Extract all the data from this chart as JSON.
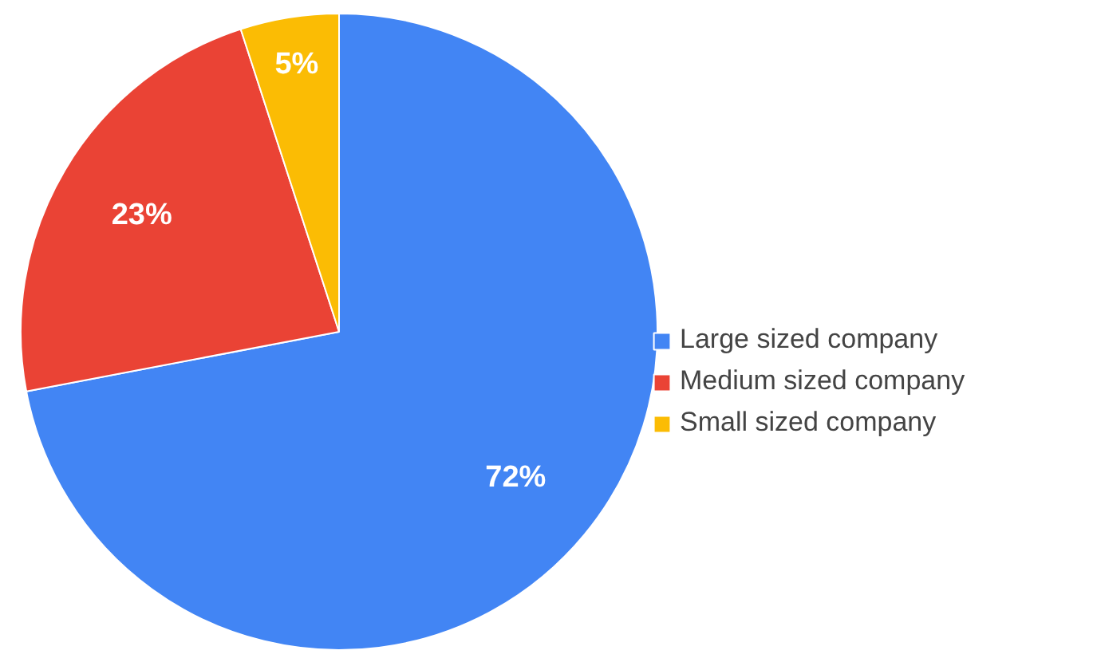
{
  "chart_data": {
    "type": "pie",
    "categories": [
      "Large sized company",
      "Medium sized company",
      "Small sized company"
    ],
    "values": [
      72,
      23,
      5
    ],
    "colors": [
      "#4285f4",
      "#ea4335",
      "#fbbc04"
    ],
    "value_labels": [
      "72%",
      "23%",
      "5%"
    ],
    "legend": "right"
  }
}
